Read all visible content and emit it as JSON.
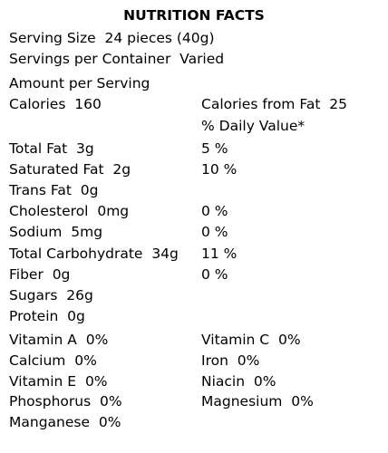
{
  "title": "NUTRITION FACTS",
  "serving_size": "Serving Size  24 pieces (40g)",
  "servings_per_container": "Servings per Container  Varied",
  "amount_per_serving": "Amount per Serving",
  "calories": "Calories  160",
  "calories_from_fat": "Calories from Fat  25",
  "daily_value_header": "% Daily Value*",
  "nutrients": [
    [
      "Total Fat  3g",
      "5 %"
    ],
    [
      "Saturated Fat  2g",
      "10 %"
    ],
    [
      "Trans Fat  0g",
      null
    ],
    [
      "Cholesterol  0mg",
      "0 %"
    ],
    [
      "Sodium  5mg",
      "0 %"
    ],
    [
      "Total Carbohydrate  34g",
      "11 %"
    ],
    [
      "Fiber  0g",
      "0 %"
    ],
    [
      "Sugars  26g",
      null
    ],
    [
      "Protein  0g",
      null
    ]
  ],
  "vitamins": [
    [
      "Vitamin A  0%",
      "Vitamin C  0%"
    ],
    [
      "Calcium  0%",
      "Iron  0%"
    ],
    [
      "Vitamin E  0%",
      "Niacin  0%"
    ],
    [
      "Phosphorus  0%",
      "Magnesium  0%"
    ],
    [
      "Manganese  0%",
      null
    ]
  ]
}
